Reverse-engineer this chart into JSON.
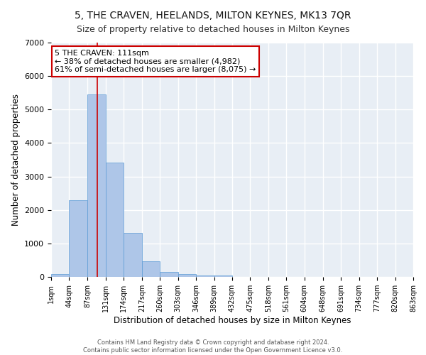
{
  "title": "5, THE CRAVEN, HEELANDS, MILTON KEYNES, MK13 7QR",
  "subtitle": "Size of property relative to detached houses in Milton Keynes",
  "xlabel": "Distribution of detached houses by size in Milton Keynes",
  "ylabel": "Number of detached properties",
  "annotation_line1": "5 THE CRAVEN: 111sqm",
  "annotation_line2": "← 38% of detached houses are smaller (4,982)",
  "annotation_line3": "61% of semi-detached houses are larger (8,075) →",
  "marker_value": 111,
  "bin_edges": [
    1,
    44,
    87,
    131,
    174,
    217,
    260,
    303,
    346,
    389,
    432,
    475,
    518,
    561,
    604,
    648,
    691,
    734,
    777,
    820,
    863
  ],
  "bar_heights": [
    75,
    2300,
    5450,
    3420,
    1310,
    460,
    155,
    90,
    50,
    35,
    0,
    0,
    0,
    0,
    0,
    0,
    0,
    0,
    0,
    0
  ],
  "bar_color": "#aec6e8",
  "bar_edge_color": "#5b9bd5",
  "marker_color": "#cc0000",
  "background_color": "#e8eef5",
  "grid_color": "#ffffff",
  "ylim": [
    0,
    7000
  ],
  "yticks": [
    0,
    1000,
    2000,
    3000,
    4000,
    5000,
    6000,
    7000
  ],
  "footer_line1": "Contains HM Land Registry data © Crown copyright and database right 2024.",
  "footer_line2": "Contains public sector information licensed under the Open Government Licence v3.0.",
  "title_fontsize": 10,
  "subtitle_fontsize": 9,
  "ylabel_fontsize": 8.5,
  "xlabel_fontsize": 8.5,
  "tick_label_fontsize": 7,
  "annotation_fontsize": 8,
  "footer_fontsize": 6
}
